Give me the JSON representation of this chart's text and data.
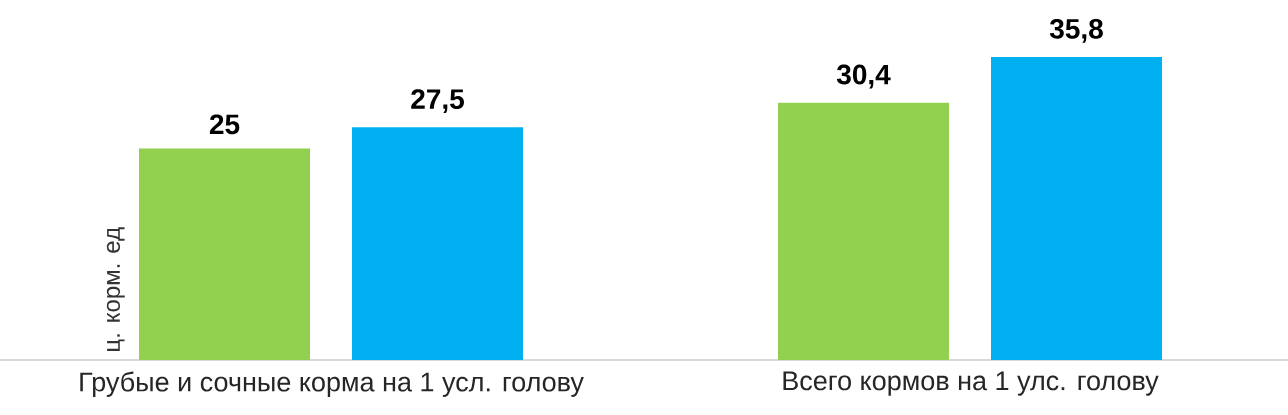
{
  "chart_data": {
    "type": "bar",
    "ylabel": "ц. корм. ед",
    "categories": [
      "Грубые и сочные корма на 1 усл. голову",
      "Всего кормов на 1 улс. голову"
    ],
    "series": [
      {
        "color": "#92d050",
        "values": [
          25,
          30.4
        ],
        "value_labels": [
          "25",
          "30,4"
        ]
      },
      {
        "color": "#00b0f0",
        "values": [
          27.5,
          35.8
        ],
        "value_labels": [
          "27,5",
          "35,8"
        ]
      }
    ]
  }
}
